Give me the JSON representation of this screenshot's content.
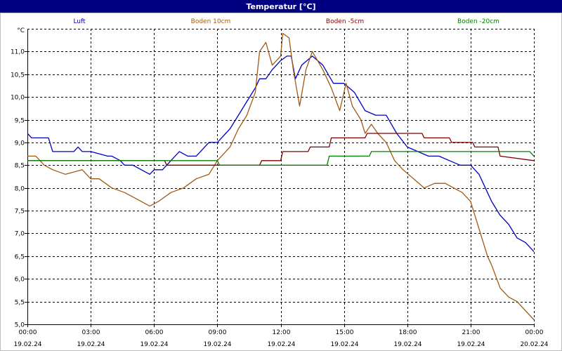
{
  "window": {
    "title": "Temperatur [°C]"
  },
  "chart_data": {
    "type": "line",
    "title": "Temperatur [°C]",
    "ylabel": "°C",
    "ylim": [
      5.0,
      11.5
    ],
    "y_ticks": [
      5.0,
      5.5,
      6.0,
      6.5,
      7.0,
      7.5,
      8.0,
      8.5,
      9.0,
      9.5,
      10.0,
      10.5,
      11.0
    ],
    "y_tick_labels": [
      "5,0",
      "5,5",
      "6,0",
      "6,5",
      "7,0",
      "7,5",
      "8,0",
      "8,5",
      "9,0",
      "9,5",
      "10,0",
      "10,5",
      "11,0"
    ],
    "xlim": [
      0,
      24
    ],
    "x_ticks": [
      {
        "h": 0,
        "time": "00:00",
        "date": "19.02.24"
      },
      {
        "h": 3,
        "time": "03:00",
        "date": "19.02.24"
      },
      {
        "h": 6,
        "time": "06:00",
        "date": "19.02.24"
      },
      {
        "h": 9,
        "time": "09:00",
        "date": "19.02.24"
      },
      {
        "h": 12,
        "time": "12:00",
        "date": "19.02.24"
      },
      {
        "h": 15,
        "time": "15:00",
        "date": "19.02.24"
      },
      {
        "h": 18,
        "time": "18:00",
        "date": "19.02.24"
      },
      {
        "h": 21,
        "time": "21:00",
        "date": "19.02.24"
      },
      {
        "h": 24,
        "time": "00:00",
        "date": "20.02.24"
      }
    ],
    "grid": true,
    "legend_position": "top",
    "series": [
      {
        "name": "Luft",
        "color": "#0000c0",
        "x": [
          0,
          0.2,
          1,
          1.2,
          2.2,
          2.4,
          2.6,
          3,
          3.8,
          4,
          4.4,
          4.6,
          5,
          5.4,
          5.8,
          6,
          6.4,
          6.8,
          7.2,
          7.6,
          8,
          8.6,
          9,
          9.6,
          10,
          10.4,
          10.8,
          11,
          11.3,
          11.6,
          12,
          12.3,
          12.5,
          12.7,
          13,
          13.5,
          14,
          14.5,
          15,
          15.5,
          16,
          16.5,
          17,
          17.5,
          18,
          18.5,
          19,
          19.5,
          20,
          20.5,
          21,
          21.4,
          21.8,
          22,
          22.4,
          22.8,
          23.2,
          23.6,
          24
        ],
        "y": [
          9.2,
          9.1,
          9.1,
          8.8,
          8.8,
          8.9,
          8.8,
          8.8,
          8.7,
          8.7,
          8.6,
          8.5,
          8.5,
          8.4,
          8.3,
          8.4,
          8.4,
          8.6,
          8.8,
          8.7,
          8.7,
          9.0,
          9.0,
          9.3,
          9.6,
          9.9,
          10.2,
          10.4,
          10.4,
          10.6,
          10.8,
          10.9,
          10.9,
          10.4,
          10.7,
          10.9,
          10.7,
          10.3,
          10.3,
          10.1,
          9.7,
          9.6,
          9.6,
          9.2,
          8.9,
          8.8,
          8.7,
          8.7,
          8.6,
          8.5,
          8.5,
          8.3,
          7.9,
          7.7,
          7.4,
          7.2,
          6.9,
          6.8,
          6.6
        ]
      },
      {
        "name": "Boden 10cm",
        "color": "#a05a14",
        "x": [
          0,
          0.4,
          0.8,
          1.2,
          1.8,
          2.6,
          3,
          3.4,
          4,
          4.6,
          5,
          5.4,
          5.8,
          6.2,
          6.8,
          7.4,
          8,
          8.6,
          9,
          9.6,
          10,
          10.4,
          10.8,
          11,
          11.3,
          11.6,
          12,
          12.1,
          12.4,
          12.6,
          12.9,
          13.2,
          13.5,
          14,
          14.4,
          14.8,
          15.1,
          15.4,
          15.8,
          16,
          16.3,
          16.6,
          17,
          17.4,
          17.8,
          18.3,
          18.8,
          19.3,
          19.8,
          20.2,
          20.6,
          21,
          21.4,
          21.8,
          22,
          22.4,
          22.8,
          23.2,
          23.6,
          24
        ],
        "y": [
          8.7,
          8.7,
          8.5,
          8.4,
          8.3,
          8.4,
          8.2,
          8.2,
          8.0,
          7.9,
          7.8,
          7.7,
          7.6,
          7.7,
          7.9,
          8.0,
          8.2,
          8.3,
          8.6,
          8.9,
          9.3,
          9.6,
          10.1,
          11.0,
          11.2,
          10.7,
          10.9,
          11.4,
          11.3,
          10.6,
          9.8,
          10.6,
          11.0,
          10.6,
          10.2,
          9.7,
          10.3,
          9.8,
          9.5,
          9.2,
          9.4,
          9.2,
          9.0,
          8.6,
          8.4,
          8.2,
          8.0,
          8.1,
          8.1,
          8.0,
          7.9,
          7.7,
          7.1,
          6.5,
          6.3,
          5.8,
          5.6,
          5.5,
          5.3,
          5.1
        ]
      },
      {
        "name": "Boden -5cm",
        "color": "#800000",
        "x": [
          0,
          6.5,
          6.6,
          11,
          11.1,
          12,
          12.1,
          13.3,
          13.4,
          14.3,
          14.4,
          16,
          16.1,
          18.7,
          18.8,
          20,
          20.1,
          21.1,
          21.2,
          22.3,
          22.4,
          24
        ],
        "y": [
          8.6,
          8.6,
          8.5,
          8.5,
          8.6,
          8.6,
          8.8,
          8.8,
          8.9,
          8.9,
          9.1,
          9.1,
          9.2,
          9.2,
          9.1,
          9.1,
          9.0,
          9.0,
          8.9,
          8.9,
          8.7,
          8.6
        ]
      },
      {
        "name": "Boden -20cm",
        "color": "#008000",
        "x": [
          0,
          9,
          9.1,
          14.2,
          14.3,
          16.2,
          16.3,
          23.8,
          24
        ],
        "y": [
          8.6,
          8.6,
          8.5,
          8.5,
          8.7,
          8.7,
          8.8,
          8.8,
          8.7
        ]
      }
    ]
  }
}
